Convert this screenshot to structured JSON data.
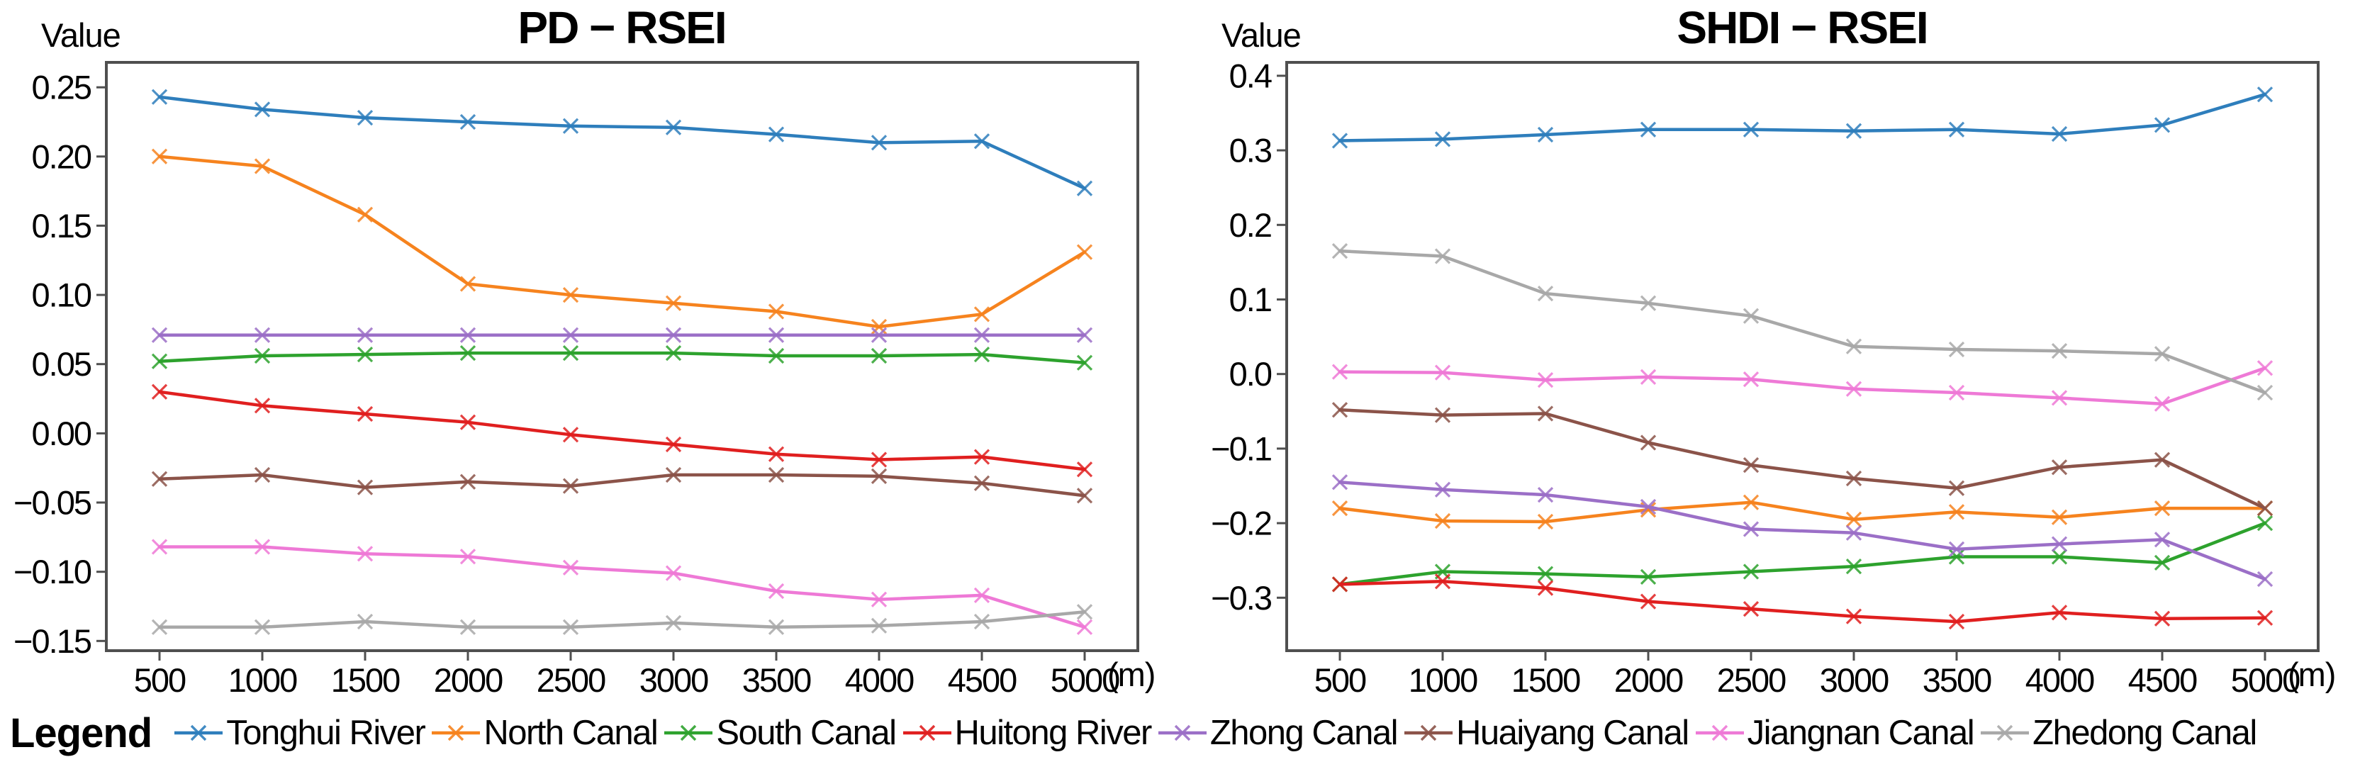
{
  "colors": {
    "background": "#ffffff",
    "frame": "#4f4f4f",
    "text": "#000000"
  },
  "legend": {
    "title": "Legend",
    "items": [
      {
        "label": "Tonghui River",
        "color": "#2e7ebc"
      },
      {
        "label": "North Canal",
        "color": "#f6831e"
      },
      {
        "label": "South Canal",
        "color": "#2da22d"
      },
      {
        "label": "Huitong River",
        "color": "#e01f1f"
      },
      {
        "label": "Zhong Canal",
        "color": "#9b6fc7"
      },
      {
        "label": "Huaiyang Canal",
        "color": "#8b5349"
      },
      {
        "label": "Jiangnan Canal",
        "color": "#ee79d6"
      },
      {
        "label": "Zhedong Canal",
        "color": "#a8a8a8"
      }
    ]
  },
  "chart_data": [
    {
      "type": "line",
      "title": "PD − RSEI",
      "ylabel": "Value",
      "x_unit": "(m)",
      "x": [
        500,
        1000,
        1500,
        2000,
        2500,
        3000,
        3500,
        4000,
        4500,
        5000
      ],
      "y_ticks": [
        0.25,
        0.2,
        0.15,
        0.1,
        0.05,
        0.0,
        -0.05,
        -0.1,
        -0.15
      ],
      "y_decimals": 2,
      "ylim": [
        -0.157,
        0.268
      ],
      "grid": false,
      "legend_position": "bottom-shared",
      "series": [
        {
          "name": "Tonghui River",
          "color": "#2e7ebc",
          "values": [
            0.243,
            0.234,
            0.228,
            0.225,
            0.222,
            0.221,
            0.216,
            0.21,
            0.211,
            0.177
          ]
        },
        {
          "name": "North Canal",
          "color": "#f6831e",
          "values": [
            0.2,
            0.193,
            0.158,
            0.108,
            0.1,
            0.094,
            0.088,
            0.077,
            0.086,
            0.131
          ]
        },
        {
          "name": "South Canal",
          "color": "#2da22d",
          "values": [
            0.052,
            0.056,
            0.057,
            0.058,
            0.058,
            0.058,
            0.056,
            0.056,
            0.057,
            0.051
          ]
        },
        {
          "name": "Huitong River",
          "color": "#e01f1f",
          "values": [
            0.03,
            0.02,
            0.014,
            0.008,
            -0.001,
            -0.008,
            -0.015,
            -0.019,
            -0.017,
            -0.026
          ]
        },
        {
          "name": "Zhong Canal",
          "color": "#9b6fc7",
          "values": [
            0.071,
            0.071,
            0.071,
            0.071,
            0.071,
            0.071,
            0.071,
            0.071,
            0.071,
            0.071
          ]
        },
        {
          "name": "Huaiyang Canal",
          "color": "#8b5349",
          "values": [
            -0.033,
            -0.03,
            -0.039,
            -0.035,
            -0.038,
            -0.03,
            -0.03,
            -0.031,
            -0.036,
            -0.045
          ]
        },
        {
          "name": "Jiangnan Canal",
          "color": "#ee79d6",
          "values": [
            -0.082,
            -0.082,
            -0.087,
            -0.089,
            -0.097,
            -0.101,
            -0.114,
            -0.12,
            -0.117,
            -0.14
          ]
        },
        {
          "name": "Zhedong Canal",
          "color": "#a8a8a8",
          "values": [
            -0.14,
            -0.14,
            -0.136,
            -0.14,
            -0.14,
            -0.137,
            -0.14,
            -0.139,
            -0.136,
            -0.129
          ]
        }
      ]
    },
    {
      "type": "line",
      "title": "SHDI − RSEI",
      "ylabel": "Value",
      "x_unit": "(m)",
      "x": [
        500,
        1000,
        1500,
        2000,
        2500,
        3000,
        3500,
        4000,
        4500,
        5000
      ],
      "y_ticks": [
        0.4,
        0.3,
        0.2,
        0.1,
        0.0,
        -0.1,
        -0.2,
        -0.3
      ],
      "y_decimals": 1,
      "ylim": [
        -0.371,
        0.418
      ],
      "grid": false,
      "legend_position": "bottom-shared",
      "series": [
        {
          "name": "Tonghui River",
          "color": "#2e7ebc",
          "values": [
            0.313,
            0.315,
            0.321,
            0.328,
            0.328,
            0.326,
            0.328,
            0.322,
            0.334,
            0.375
          ]
        },
        {
          "name": "North Canal",
          "color": "#f6831e",
          "values": [
            -0.18,
            -0.197,
            -0.198,
            -0.182,
            -0.172,
            -0.195,
            -0.185,
            -0.192,
            -0.18,
            -0.18
          ]
        },
        {
          "name": "South Canal",
          "color": "#2da22d",
          "values": [
            -0.282,
            -0.265,
            -0.268,
            -0.272,
            -0.265,
            -0.258,
            -0.245,
            -0.245,
            -0.253,
            -0.2
          ]
        },
        {
          "name": "Huitong River",
          "color": "#e01f1f",
          "values": [
            -0.282,
            -0.278,
            -0.287,
            -0.305,
            -0.315,
            -0.325,
            -0.332,
            -0.32,
            -0.328,
            -0.327
          ]
        },
        {
          "name": "Zhong Canal",
          "color": "#9b6fc7",
          "values": [
            -0.145,
            -0.155,
            -0.162,
            -0.178,
            -0.208,
            -0.213,
            -0.235,
            -0.228,
            -0.222,
            -0.275
          ]
        },
        {
          "name": "Huaiyang Canal",
          "color": "#8b5349",
          "values": [
            -0.048,
            -0.055,
            -0.053,
            -0.092,
            -0.122,
            -0.14,
            -0.153,
            -0.125,
            -0.115,
            -0.18
          ]
        },
        {
          "name": "Jiangnan Canal",
          "color": "#ee79d6",
          "values": [
            0.003,
            0.002,
            -0.008,
            -0.004,
            -0.007,
            -0.02,
            -0.025,
            -0.032,
            -0.04,
            0.008
          ]
        },
        {
          "name": "Zhedong Canal",
          "color": "#a8a8a8",
          "values": [
            0.165,
            0.158,
            0.108,
            0.095,
            0.078,
            0.037,
            0.033,
            0.031,
            0.027,
            -0.025
          ]
        }
      ]
    }
  ]
}
